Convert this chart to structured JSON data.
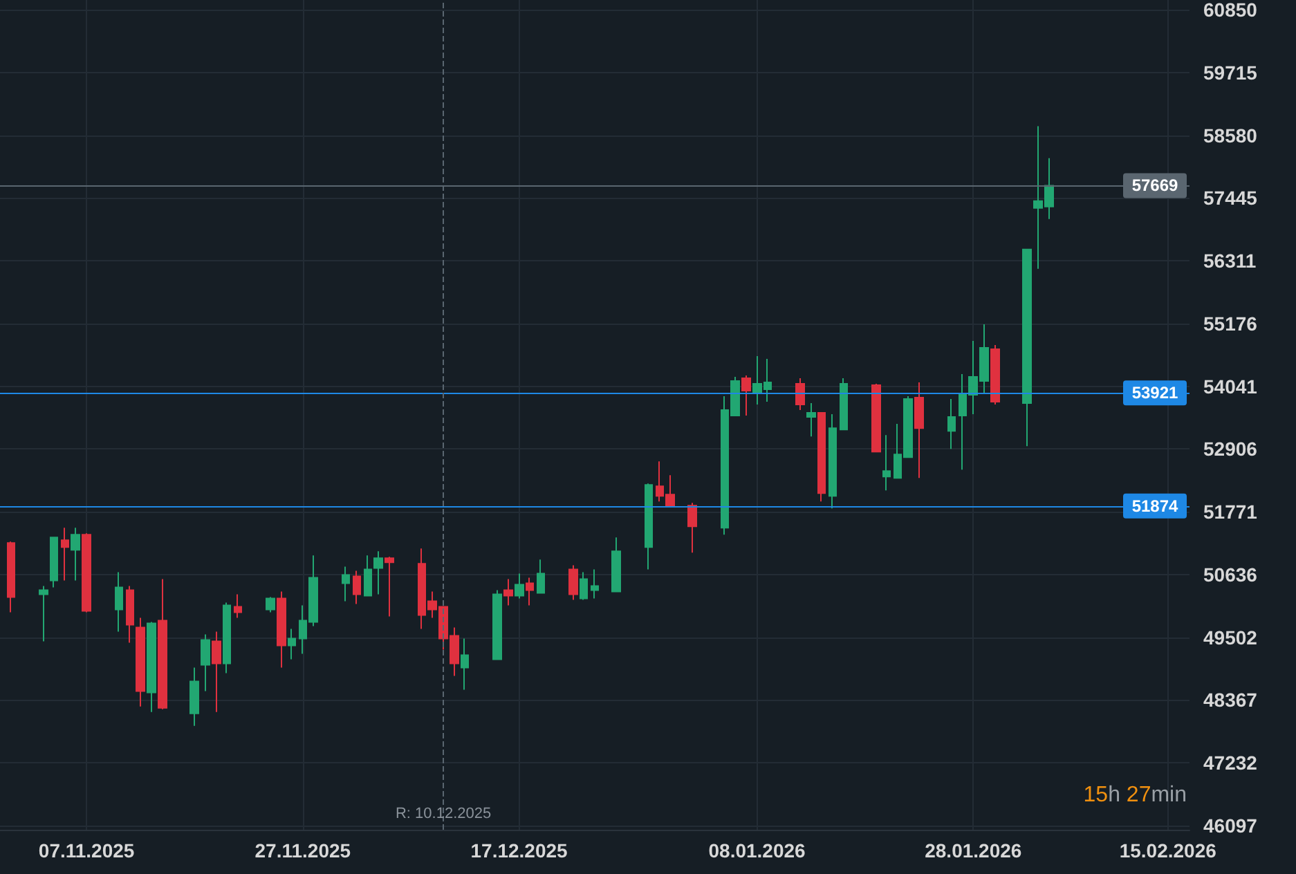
{
  "chart_data": {
    "type": "candlestick",
    "x": [
      "2025-10-31",
      "2025-11-03",
      "2025-11-04",
      "2025-11-05",
      "2025-11-06",
      "2025-11-07",
      "2025-11-10",
      "2025-11-11",
      "2025-11-12",
      "2025-11-13",
      "2025-11-14",
      "2025-11-17",
      "2025-11-18",
      "2025-11-19",
      "2025-11-20",
      "2025-11-21",
      "2025-11-24",
      "2025-11-25",
      "2025-11-26",
      "2025-11-27",
      "2025-11-28",
      "2025-12-01",
      "2025-12-02",
      "2025-12-03",
      "2025-12-04",
      "2025-12-05",
      "2025-12-08",
      "2025-12-09",
      "2025-12-10",
      "2025-12-11",
      "2025-12-12",
      "2025-12-15",
      "2025-12-16",
      "2025-12-17",
      "2025-12-18",
      "2025-12-19",
      "2025-12-22",
      "2025-12-23",
      "2025-12-24",
      "2025-12-26",
      "2025-12-29",
      "2025-12-30",
      "2025-12-31",
      "2026-01-02",
      "2026-01-05",
      "2026-01-06",
      "2026-01-07",
      "2026-01-08",
      "2026-01-09",
      "2026-01-12",
      "2026-01-13",
      "2026-01-14",
      "2026-01-15",
      "2026-01-16",
      "2026-01-19",
      "2026-01-20",
      "2026-01-21",
      "2026-01-22",
      "2026-01-23",
      "2026-01-26",
      "2026-01-27",
      "2026-01-28",
      "2026-01-29",
      "2026-01-30",
      "2026-02-02",
      "2026-02-03",
      "2026-02-04"
    ],
    "ohlc": [
      [
        51205,
        51230,
        49953,
        50229
      ],
      [
        50279,
        50429,
        49427,
        50354
      ],
      [
        50529,
        51305,
        50404,
        51305
      ],
      [
        51255,
        51481,
        50529,
        51130
      ],
      [
        51080,
        51481,
        50529,
        51355
      ],
      [
        51355,
        51380,
        49953,
        49978
      ],
      [
        50003,
        50679,
        49603,
        50404
      ],
      [
        50354,
        50429,
        49402,
        49728
      ],
      [
        49678,
        49853,
        48250,
        48526
      ],
      [
        48501,
        49778,
        48150,
        49753
      ],
      [
        49803,
        50554,
        48200,
        48225
      ],
      [
        48125,
        48952,
        47900,
        48701
      ],
      [
        49002,
        49553,
        48526,
        49452
      ],
      [
        49427,
        49603,
        48150,
        49027
      ],
      [
        49027,
        50128,
        48851,
        50078
      ],
      [
        50053,
        50279,
        49853,
        49953
      ],
      [
        50003,
        50229,
        49953,
        50204
      ],
      [
        50204,
        50329,
        48952,
        49352
      ],
      [
        49352,
        49653,
        49102,
        49477
      ],
      [
        49477,
        50078,
        49202,
        49803
      ],
      [
        49778,
        50980,
        49703,
        50579
      ],
      [
        50479,
        50779,
        50154,
        50629
      ],
      [
        50604,
        50704,
        50104,
        50279
      ],
      [
        50254,
        50980,
        50254,
        50729
      ],
      [
        50754,
        51055,
        50279,
        50930
      ],
      [
        50930,
        50955,
        49878,
        50855
      ],
      [
        50830,
        51105,
        49653,
        49903
      ],
      [
        50154,
        50329,
        49853,
        50003
      ],
      [
        50053,
        50053,
        49277,
        49477
      ],
      [
        49527,
        49678,
        48801,
        49027
      ],
      [
        48952,
        49477,
        48551,
        49177
      ],
      [
        49102,
        50354,
        49102,
        50279
      ],
      [
        50354,
        50554,
        50078,
        50254
      ],
      [
        50254,
        50654,
        50204,
        50454
      ],
      [
        50479,
        50579,
        50078,
        50354
      ],
      [
        50304,
        50905,
        50304,
        50654
      ],
      [
        50729,
        50804,
        50179,
        50279
      ],
      [
        50204,
        50679,
        50179,
        50554
      ],
      [
        50354,
        50729,
        50204,
        50429
      ],
      [
        50329,
        51305,
        50329,
        51055
      ],
      [
        51130,
        52282,
        50729,
        52257
      ],
      [
        52232,
        52682,
        51956,
        52057
      ],
      [
        52082,
        52432,
        51856,
        51881
      ],
      [
        51881,
        51931,
        51030,
        51506
      ],
      [
        51481,
        53859,
        51355,
        53609
      ],
      [
        53509,
        54210,
        53509,
        54135
      ],
      [
        54185,
        54235,
        53509,
        53960
      ],
      [
        53935,
        54586,
        53709,
        54085
      ],
      [
        53985,
        54536,
        53759,
        54110
      ],
      [
        54085,
        54185,
        53609,
        53709
      ],
      [
        53484,
        53734,
        53133,
        53559
      ],
      [
        53559,
        53559,
        51956,
        52107
      ],
      [
        52057,
        53534,
        51831,
        53283
      ],
      [
        53258,
        54185,
        53258,
        54085
      ],
      [
        54060,
        54085,
        52858,
        52858
      ],
      [
        52407,
        53158,
        52157,
        52507
      ],
      [
        52382,
        53359,
        52382,
        52808
      ],
      [
        52758,
        53859,
        52758,
        53809
      ],
      [
        53834,
        54110,
        52382,
        53283
      ],
      [
        53233,
        53809,
        52908,
        53484
      ],
      [
        53509,
        54260,
        52532,
        53884
      ],
      [
        53884,
        54861,
        53534,
        54210
      ],
      [
        54135,
        55161,
        53909,
        54736
      ],
      [
        54711,
        54786,
        53709,
        53759
      ],
      [
        53734,
        56514,
        52958,
        56514
      ],
      [
        57265,
        58742,
        56163,
        57390
      ],
      [
        57290,
        58166,
        57065,
        57669
      ]
    ],
    "colors": [
      "#e0313f",
      "#22a772",
      "#22a772",
      "#e0313f",
      "#22a772",
      "#e0313f",
      "#22a772",
      "#e0313f",
      "#e0313f",
      "#22a772",
      "#e0313f",
      "#22a772",
      "#22a772",
      "#e0313f",
      "#22a772",
      "#e0313f",
      "#22a772",
      "#e0313f",
      "#22a772",
      "#22a772",
      "#22a772",
      "#22a772",
      "#e0313f",
      "#22a772",
      "#22a772",
      "#e0313f",
      "#e0313f",
      "#e0313f",
      "#e0313f",
      "#e0313f",
      "#22a772",
      "#22a772",
      "#e0313f",
      "#22a772",
      "#e0313f",
      "#22a772",
      "#e0313f",
      "#22a772",
      "#22a772",
      "#22a772",
      "#22a772",
      "#e0313f",
      "#e0313f",
      "#e0313f",
      "#22a772",
      "#22a772",
      "#e0313f",
      "#22a772",
      "#22a772",
      "#e0313f",
      "#22a772",
      "#e0313f",
      "#22a772",
      "#22a772",
      "#e0313f",
      "#22a772",
      "#22a772",
      "#22a772",
      "#e0313f",
      "#22a772",
      "#22a772",
      "#22a772",
      "#22a772",
      "#e0313f",
      "#22a772",
      "#22a772",
      "#22a772"
    ],
    "xlim": [
      "2025-10-30",
      "2026-02-17"
    ],
    "xticks": [
      {
        "value": "2025-11-07",
        "label": "07.11.2025"
      },
      {
        "value": "2025-11-27",
        "label": "27.11.2025"
      },
      {
        "value": "2025-12-17",
        "label": "17.12.2025"
      },
      {
        "value": "2026-01-08",
        "label": "08.01.2026"
      },
      {
        "value": "2026-01-28",
        "label": "28.01.2026"
      },
      {
        "value": "2026-02-15",
        "label": "15.02.2026"
      }
    ],
    "ylim": [
      46020,
      61025
    ],
    "yticks": [
      46097,
      47232,
      48367,
      49502,
      50636,
      51771,
      52906,
      54041,
      55176,
      56311,
      57445,
      58580,
      59715,
      60850
    ],
    "ref_lines": [
      {
        "axis": "y",
        "value": 57669,
        "label": "57669",
        "color": "#5a6670",
        "line_style": "solid"
      },
      {
        "axis": "y",
        "value": 53921,
        "label": "53921",
        "color": "#1e88e5",
        "line_style": "solid"
      },
      {
        "axis": "y",
        "value": 51874,
        "label": "51874",
        "color": "#1e88e5",
        "line_style": "solid"
      },
      {
        "axis": "x",
        "value": "2025-12-10",
        "label": "R: 10.12.2025",
        "color": "#5a6670",
        "line_style": "dashed"
      }
    ],
    "annotations": [
      "15h 27min"
    ],
    "grid": true
  }
}
